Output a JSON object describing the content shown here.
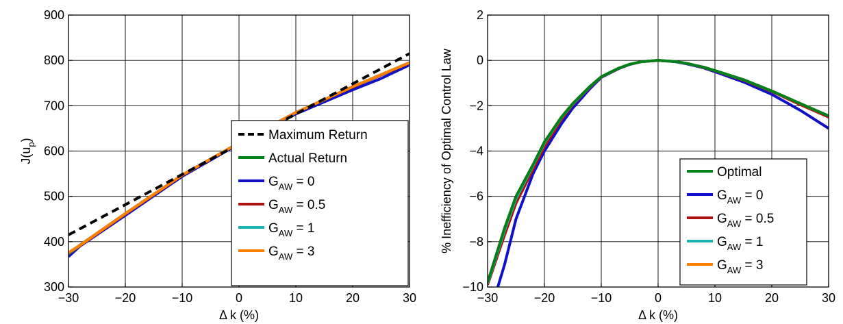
{
  "chart_data": [
    {
      "type": "line",
      "xlabel": "Δ k (%)",
      "ylabel": "J(u",
      "ylabel_sub": "p",
      "ylabel_close": ")",
      "xlim": [
        -30,
        30
      ],
      "ylim": [
        300,
        900
      ],
      "xticks": [
        -30,
        -20,
        -10,
        0,
        10,
        20,
        30
      ],
      "xtick_labels": [
        "−30",
        "−20",
        "−10",
        "0",
        "10",
        "20",
        "30"
      ],
      "yticks": [
        300,
        400,
        500,
        600,
        700,
        800,
        900
      ],
      "ytick_labels": [
        "300",
        "400",
        "500",
        "600",
        "700",
        "800",
        "900"
      ],
      "grid": true,
      "legend_position": "bottom-right",
      "series": [
        {
          "key": "max",
          "name": "Maximum Return",
          "color": "#000000",
          "dashed": true,
          "x": [
            -30,
            30
          ],
          "y": [
            415,
            815
          ]
        },
        {
          "key": "actual",
          "name": "Actual Return",
          "color": "#00801a",
          "x": [
            -30,
            -20,
            -10,
            0,
            10,
            20,
            30
          ],
          "y": [
            375,
            462,
            547,
            618,
            685,
            742,
            795
          ]
        },
        {
          "key": "g0",
          "name_main": "G",
          "name_sub": "AW",
          "name_tail": " = 0",
          "color": "#1010c8",
          "x": [
            -30,
            -28,
            -20,
            -10,
            0,
            10,
            20,
            25,
            30
          ],
          "y": [
            367,
            390,
            458,
            544,
            616,
            682,
            735,
            760,
            790
          ]
        },
        {
          "key": "g05",
          "name_main": "G",
          "name_sub": "AW",
          "name_tail": " = 0.5",
          "color": "#b01010",
          "x": [
            -30,
            -20,
            -10,
            0,
            10,
            20,
            30
          ],
          "y": [
            373,
            461,
            546,
            618,
            685,
            741,
            794
          ]
        },
        {
          "key": "g1",
          "name_main": "G",
          "name_sub": "AW",
          "name_tail": " = 1",
          "color": "#1ab3b3",
          "x": [
            -30,
            -20,
            -10,
            0,
            10,
            20,
            30
          ],
          "y": [
            374,
            462,
            547,
            618,
            685,
            742,
            795
          ]
        },
        {
          "key": "g3",
          "name_main": "G",
          "name_sub": "AW",
          "name_tail": " = 3",
          "color": "#ff8000",
          "x": [
            -30,
            -28,
            -20,
            -10,
            0,
            10,
            20,
            30
          ],
          "y": [
            376,
            392,
            462,
            547,
            618,
            685,
            742,
            795
          ]
        }
      ]
    },
    {
      "type": "line",
      "xlabel": "Δ k (%)",
      "ylabel": "% Inefficiency of Optimal Control Law",
      "xlim": [
        -30,
        30
      ],
      "ylim": [
        -10,
        2
      ],
      "xticks": [
        -30,
        -20,
        -10,
        0,
        10,
        20,
        30
      ],
      "xtick_labels": [
        "−30",
        "−20",
        "−10",
        "0",
        "10",
        "20",
        "30"
      ],
      "yticks": [
        -10,
        -8,
        -6,
        -4,
        -2,
        0,
        2
      ],
      "ytick_labels": [
        "−10",
        "−8",
        "−6",
        "−4",
        "−2",
        "0",
        "2"
      ],
      "grid": true,
      "legend_position": "bottom-right",
      "series": [
        {
          "key": "optimal",
          "name": "Optimal",
          "color": "#00801a",
          "x": [
            -30,
            -27,
            -25,
            -22,
            -20,
            -17,
            -15,
            -12,
            -10,
            -7,
            -5,
            -3,
            0,
            3,
            5,
            8,
            10,
            15,
            20,
            25,
            30
          ],
          "y": [
            -9.8,
            -7.4,
            -6.0,
            -4.6,
            -3.6,
            -2.5,
            -1.9,
            -1.15,
            -0.72,
            -0.35,
            -0.17,
            -0.06,
            0,
            -0.05,
            -0.13,
            -0.3,
            -0.45,
            -0.85,
            -1.35,
            -1.9,
            -2.45
          ]
        },
        {
          "key": "g0",
          "name_main": "G",
          "name_sub": "AW",
          "name_tail": " = 0",
          "color": "#1010c8",
          "x": [
            -28.2,
            -27,
            -25,
            -22,
            -20,
            -17,
            -15,
            -12,
            -10,
            -7,
            -5,
            -3,
            0,
            3,
            5,
            8,
            10,
            15,
            20,
            25,
            30
          ],
          "y": [
            -10,
            -9.0,
            -7.0,
            -5.0,
            -4.0,
            -2.8,
            -2.1,
            -1.25,
            -0.75,
            -0.37,
            -0.18,
            -0.06,
            0,
            -0.06,
            -0.15,
            -0.33,
            -0.5,
            -0.95,
            -1.5,
            -2.2,
            -3.0
          ]
        },
        {
          "key": "g05",
          "name_main": "G",
          "name_sub": "AW",
          "name_tail": " = 0.5",
          "color": "#b01010",
          "x": [
            -30,
            -27,
            -25,
            -22,
            -20,
            -17,
            -15,
            -12,
            -10,
            -7,
            -5,
            -3,
            0,
            3,
            5,
            8,
            10,
            15,
            20,
            25,
            30
          ],
          "y": [
            -9.9,
            -7.7,
            -6.3,
            -4.8,
            -3.8,
            -2.6,
            -1.95,
            -1.18,
            -0.73,
            -0.36,
            -0.17,
            -0.06,
            0,
            -0.05,
            -0.13,
            -0.31,
            -0.46,
            -0.87,
            -1.37,
            -1.95,
            -2.5
          ]
        },
        {
          "key": "g1",
          "name_main": "G",
          "name_sub": "AW",
          "name_tail": " = 1",
          "color": "#1ab3b3",
          "x": [
            -30,
            -27,
            -25,
            -22,
            -20,
            -17,
            -15,
            -12,
            -10,
            -7,
            -5,
            -3,
            0,
            3,
            5,
            8,
            10,
            15,
            20,
            25,
            30
          ],
          "y": [
            -9.85,
            -7.5,
            -6.1,
            -4.65,
            -3.65,
            -2.52,
            -1.92,
            -1.16,
            -0.72,
            -0.35,
            -0.17,
            -0.06,
            0,
            -0.05,
            -0.13,
            -0.3,
            -0.45,
            -0.85,
            -1.35,
            -1.9,
            -2.45
          ]
        },
        {
          "key": "g3",
          "name_main": "G",
          "name_sub": "AW",
          "name_tail": " = 3",
          "color": "#ff8000",
          "x": [
            -30,
            -27,
            -25,
            -22,
            -20,
            -17,
            -15,
            -12,
            -10,
            -7,
            -5,
            -3,
            0,
            3,
            5,
            8,
            10,
            15,
            20,
            25,
            30
          ],
          "y": [
            -9.8,
            -7.4,
            -6.0,
            -4.6,
            -3.6,
            -2.5,
            -1.9,
            -1.15,
            -0.72,
            -0.35,
            -0.17,
            -0.06,
            0,
            -0.05,
            -0.13,
            -0.3,
            -0.45,
            -0.85,
            -1.35,
            -1.9,
            -2.45
          ]
        }
      ]
    }
  ]
}
